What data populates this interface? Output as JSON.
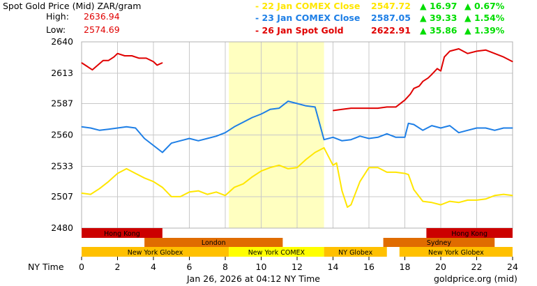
{
  "header": {
    "title": "Spot Gold Price (Mid) ZAR/gram",
    "high_label": "High:",
    "high_value": "2636.94",
    "low_label": "Low:",
    "low_value": "2574.69",
    "high_color": "#e00000",
    "low_color": "#e00000"
  },
  "legend": [
    {
      "label": "- 22 Jan COMEX Close",
      "price": "2547.72",
      "change": "▲ 16.97",
      "pct": "▲ 0.67%",
      "color": "#ffe600",
      "change_color": "#00dd00"
    },
    {
      "label": "- 23 Jan COMEX Close",
      "price": "2587.05",
      "change": "▲ 39.33",
      "pct": "▲ 1.54%",
      "color": "#1e7fe6",
      "change_color": "#00dd00"
    },
    {
      "label": "- 26 Jan Spot Gold",
      "price": "2622.91",
      "change": "▲ 35.86",
      "pct": "▲ 1.39%",
      "color": "#e00000",
      "change_color": "#00dd00"
    }
  ],
  "footer": {
    "timestamp": "Jan 26, 2026 at 04:12 NY Time",
    "source": "goldprice.org (mid)",
    "x_axis_label": "NY Time"
  },
  "sessions": [
    {
      "name": "Hong Kong",
      "start": 0,
      "end": 4.5,
      "row": 0,
      "color": "#cc0000"
    },
    {
      "name": "Hong Kong",
      "start": 19.2,
      "end": 24,
      "row": 0,
      "color": "#cc0000"
    },
    {
      "name": "London",
      "start": 3.5,
      "end": 11.2,
      "row": 1,
      "color": "#e06c00"
    },
    {
      "name": "Sydney",
      "start": 16.8,
      "end": 23.0,
      "row": 1,
      "color": "#e06c00"
    },
    {
      "name": "New York Globex",
      "start": 0,
      "end": 8.2,
      "row": 2,
      "color": "#ffc000"
    },
    {
      "name": "New York COMEX",
      "start": 8.2,
      "end": 13.5,
      "row": 2,
      "color": "#ffff00"
    },
    {
      "name": "NY Globex",
      "start": 13.5,
      "end": 17.0,
      "row": 2,
      "color": "#ffc000"
    },
    {
      "name": "New York Globex",
      "start": 17.7,
      "end": 24,
      "row": 2,
      "color": "#ffc000"
    }
  ],
  "chart_data": {
    "type": "line",
    "title": "Spot Gold Price (Mid) ZAR/gram",
    "xlabel": "NY Time",
    "ylabel": "",
    "xlim": [
      0,
      24
    ],
    "ylim": [
      2480,
      2640
    ],
    "x_ticks": [
      0,
      2,
      4,
      6,
      8,
      10,
      12,
      14,
      16,
      18,
      20,
      22,
      24
    ],
    "y_ticks": [
      2480,
      2507,
      2533,
      2560,
      2587,
      2613,
      2640
    ],
    "grid": true,
    "highlight": {
      "start": 8.2,
      "end": 13.5,
      "color": "#ffffc0"
    },
    "series": [
      {
        "name": "22 Jan COMEX Close",
        "color": "#ffe600",
        "x": [
          0,
          0.5,
          1,
          1.5,
          2,
          2.5,
          3,
          3.5,
          4,
          4.5,
          5,
          5.5,
          6,
          6.5,
          7,
          7.5,
          8,
          8.5,
          9,
          9.5,
          10,
          10.5,
          11,
          11.5,
          12,
          12.5,
          13,
          13.5,
          14,
          14.2,
          14.5,
          14.8,
          15,
          15.5,
          16,
          16.5,
          17,
          17.5,
          18,
          18.2,
          18.5,
          19,
          19.5,
          20,
          20.5,
          21,
          21.5,
          22,
          22.5,
          23,
          23.5,
          24
        ],
        "y": [
          2510,
          2509,
          2514,
          2520,
          2527,
          2531,
          2527,
          2523,
          2520,
          2515,
          2507,
          2507,
          2511,
          2512,
          2509,
          2511,
          2508,
          2515,
          2518,
          2524,
          2529,
          2532,
          2534,
          2531,
          2532,
          2539,
          2545,
          2549,
          2534,
          2536,
          2512,
          2498,
          2500,
          2520,
          2532,
          2532,
          2528,
          2528,
          2527,
          2526,
          2513,
          2503,
          2502,
          2500,
          2503,
          2502,
          2504,
          2504,
          2505,
          2508,
          2509,
          2508
        ]
      },
      {
        "name": "23 Jan COMEX Close",
        "color": "#1e7fe6",
        "x": [
          0,
          0.5,
          1,
          1.5,
          2,
          2.5,
          3,
          3.5,
          4,
          4.5,
          5,
          5.5,
          6,
          6.5,
          7,
          7.5,
          8,
          8.5,
          9,
          9.5,
          10,
          10.5,
          11,
          11.5,
          12,
          12.5,
          13,
          13.5,
          14,
          14.5,
          15,
          15.5,
          16,
          16.5,
          17,
          17.5,
          18,
          18.2,
          18.5,
          19,
          19.5,
          20,
          20.5,
          21,
          21.5,
          22,
          22.5,
          23,
          23.5,
          24
        ],
        "y": [
          2567,
          2566,
          2564,
          2565,
          2566,
          2567,
          2566,
          2557,
          2551,
          2545,
          2553,
          2555,
          2557,
          2555,
          2557,
          2559,
          2562,
          2567,
          2571,
          2575,
          2578,
          2582,
          2583,
          2589,
          2587,
          2585,
          2584,
          2556,
          2558,
          2555,
          2556,
          2559,
          2557,
          2558,
          2561,
          2558,
          2558,
          2570,
          2569,
          2564,
          2568,
          2566,
          2568,
          2562,
          2564,
          2566,
          2566,
          2564,
          2566,
          2566
        ]
      },
      {
        "name": "26 Jan Spot Gold",
        "color": "#e00000",
        "x": [
          0,
          0.3,
          0.6,
          0.9,
          1.2,
          1.5,
          1.8,
          2,
          2.4,
          2.8,
          3.2,
          3.6,
          4,
          4.2,
          4.5,
          14,
          14.5,
          15,
          15.5,
          16,
          16.5,
          17,
          17.5,
          18,
          18.3,
          18.5,
          18.8,
          19,
          19.3,
          19.5,
          19.8,
          20,
          20.2,
          20.5,
          21,
          21.5,
          22,
          22.5,
          23,
          23.5,
          24
        ],
        "y": [
          2622,
          2619,
          2616,
          2620,
          2624,
          2624,
          2627,
          2630,
          2628,
          2628,
          2626,
          2626,
          2623,
          2620,
          2622,
          2581,
          2582,
          2583,
          2583,
          2583,
          2583,
          2584,
          2584,
          2590,
          2595,
          2600,
          2602,
          2606,
          2609,
          2612,
          2617,
          2615,
          2627,
          2632,
          2634,
          2630,
          2632,
          2633,
          2630,
          2627,
          2623
        ]
      }
    ]
  }
}
